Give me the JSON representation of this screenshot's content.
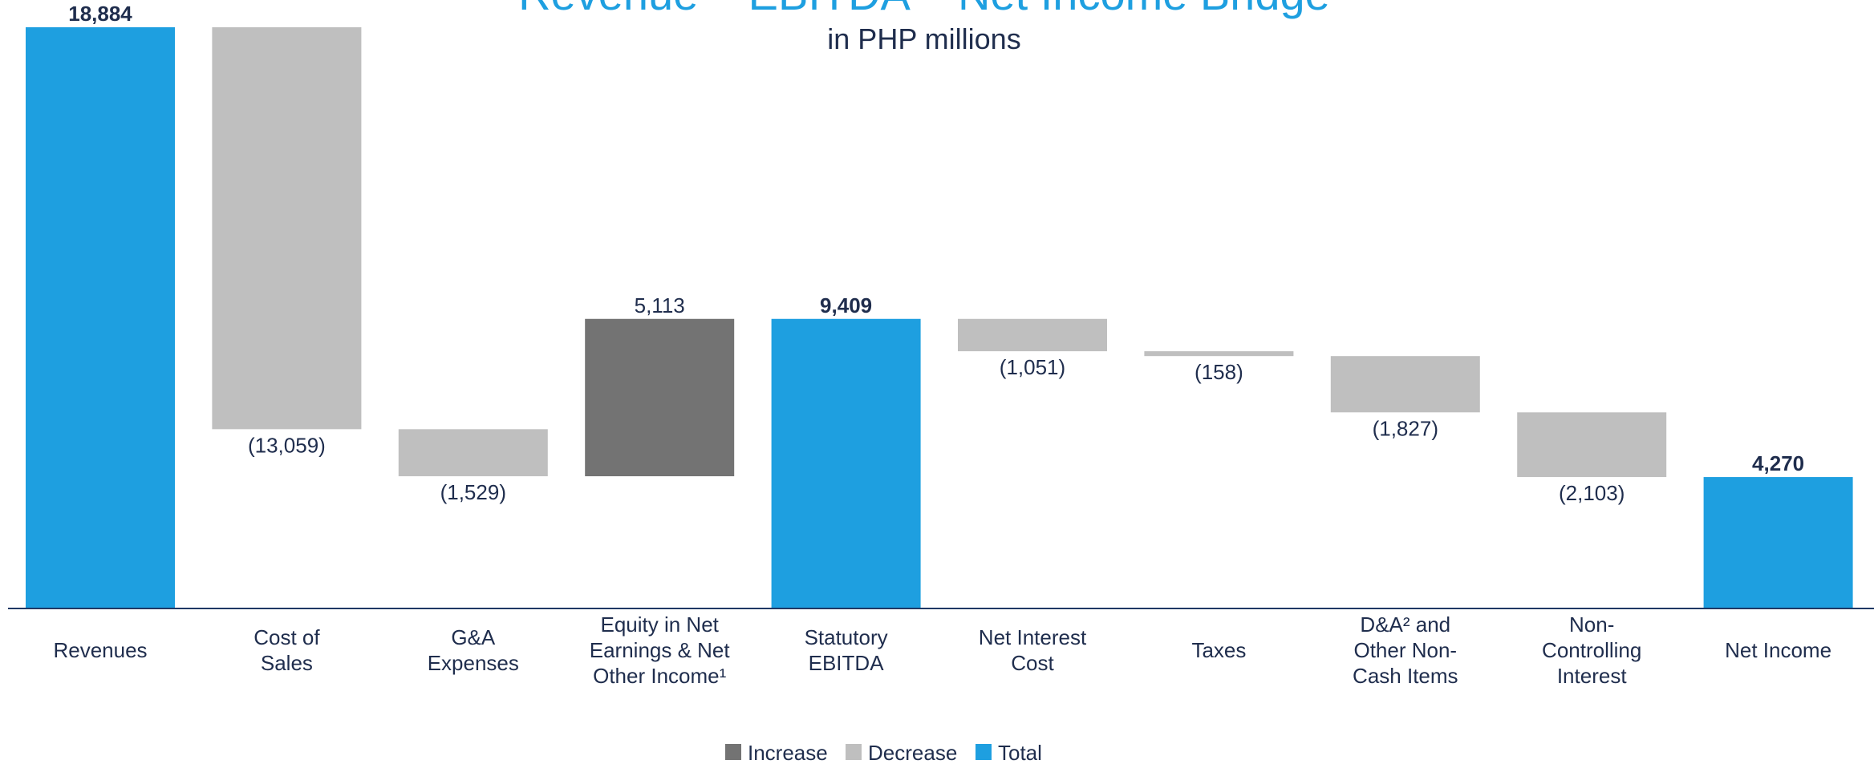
{
  "chart_data": {
    "type": "bar",
    "subtype": "waterfall",
    "title": "Revenue – EBITDA – Net Income Bridge",
    "subtitle": "in PHP millions",
    "unit": "PHP millions",
    "ylim": [
      0,
      18884
    ],
    "grid": false,
    "legend_position": "bottom",
    "colors": {
      "increase": "#737373",
      "decrease": "#BFBFBF",
      "total": "#1E9FE0",
      "text": "#1F2D4D",
      "axis": "#1F3864"
    },
    "legend": [
      {
        "key": "increase",
        "label": "Increase"
      },
      {
        "key": "decrease",
        "label": "Decrease"
      },
      {
        "key": "total",
        "label": "Total"
      }
    ],
    "steps": [
      {
        "label": [
          "Revenues"
        ],
        "kind": "total",
        "value": 18884,
        "value_label": "18,884"
      },
      {
        "label": [
          "Cost of",
          "Sales"
        ],
        "kind": "decrease",
        "value": -13059,
        "value_label": "(13,059)"
      },
      {
        "label": [
          "G&A",
          "Expenses"
        ],
        "kind": "decrease",
        "value": -1529,
        "value_label": "(1,529)"
      },
      {
        "label": [
          "Equity in Net",
          "Earnings & Net",
          "Other Income¹"
        ],
        "kind": "increase",
        "value": 5113,
        "value_label": "5,113"
      },
      {
        "label": [
          "Statutory",
          "EBITDA"
        ],
        "kind": "total",
        "value": 9409,
        "value_label": "9,409"
      },
      {
        "label": [
          "Net Interest",
          "Cost"
        ],
        "kind": "decrease",
        "value": -1051,
        "value_label": "(1,051)"
      },
      {
        "label": [
          "Taxes"
        ],
        "kind": "decrease",
        "value": -158,
        "value_label": "(158)"
      },
      {
        "label": [
          "D&A² and",
          "Other Non-",
          "Cash Items"
        ],
        "kind": "decrease",
        "value": -1827,
        "value_label": "(1,827)"
      },
      {
        "label": [
          "Non-",
          "Controlling",
          "Interest"
        ],
        "kind": "decrease",
        "value": -2103,
        "value_label": "(2,103)"
      },
      {
        "label": [
          "Net Income"
        ],
        "kind": "total",
        "value": 4270,
        "value_label": "4,270"
      }
    ]
  }
}
